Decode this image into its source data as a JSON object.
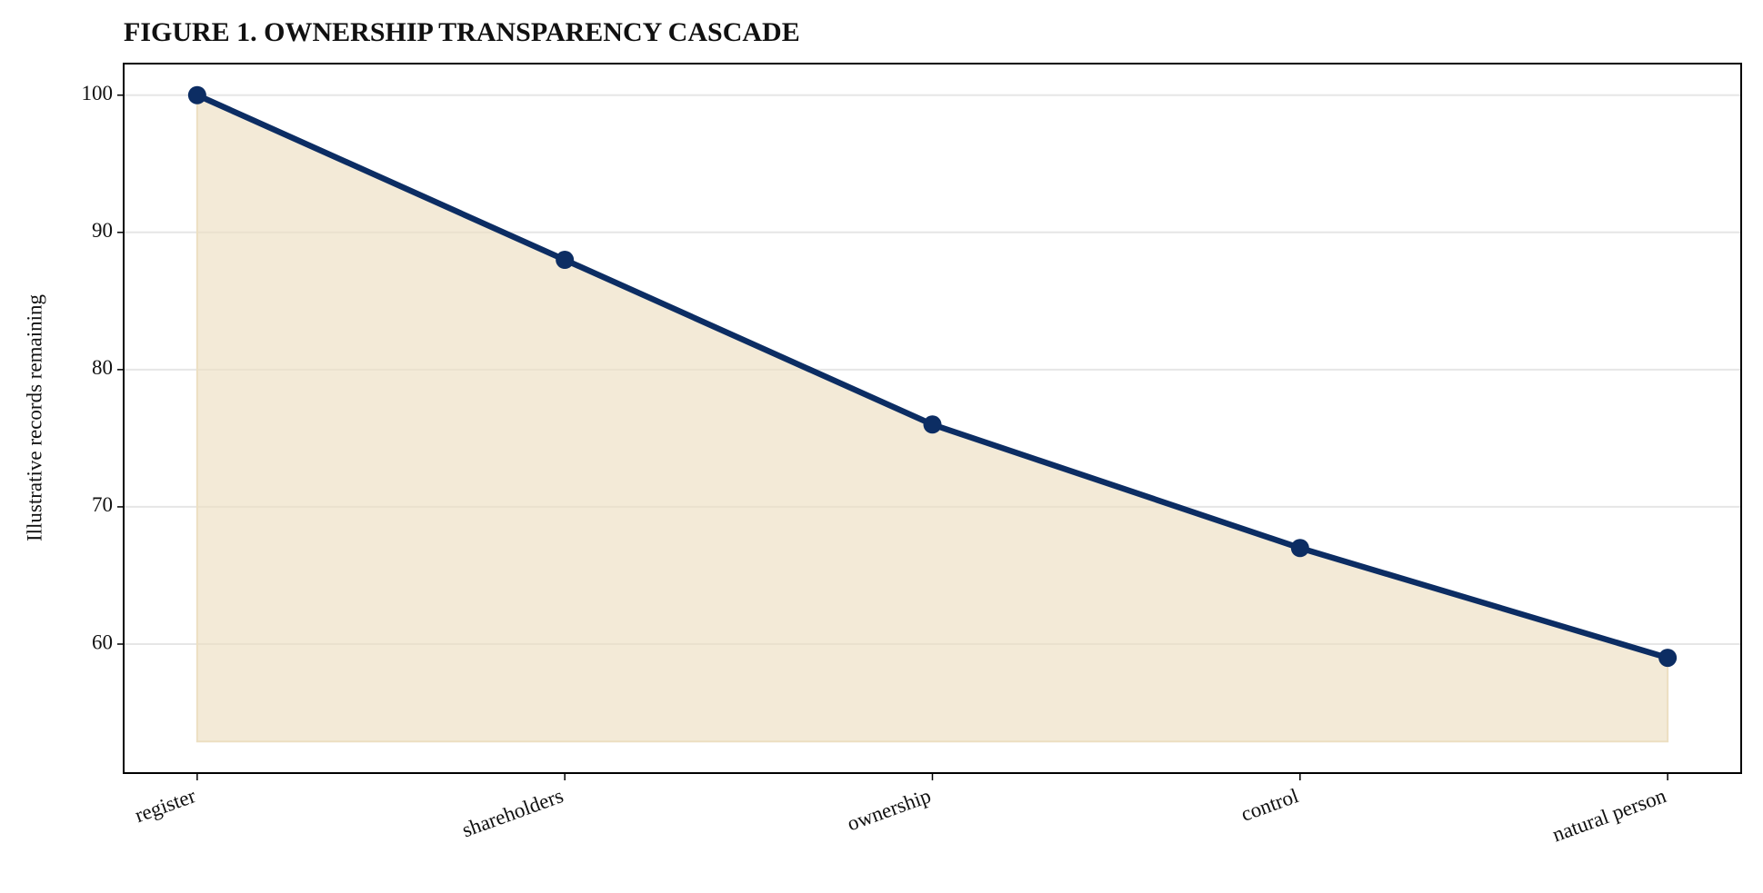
{
  "chart_data": {
    "type": "line",
    "title": "FIGURE 1. OWNERSHIP TRANSPARENCY CASCADE",
    "y_label": "Illustrative records remaining",
    "categories": [
      "register",
      "shareholders",
      "ownership",
      "control",
      "natural person"
    ],
    "values": [
      100,
      88,
      76,
      67,
      59
    ],
    "color": "#0c2d63",
    "fill_color": "#ecdfc2",
    "fill_base": 52.9,
    "ylim": [
      50.6,
      102.3
    ],
    "yticks": [
      60,
      70,
      80,
      90,
      100
    ],
    "grid": true
  }
}
